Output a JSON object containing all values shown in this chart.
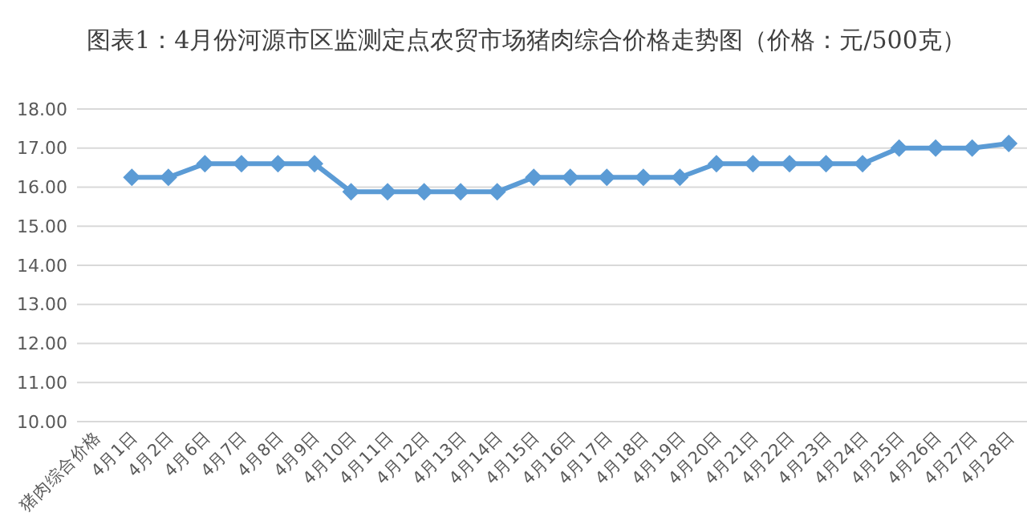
{
  "chart_data": {
    "type": "line",
    "title": "图表1：4月份河源市区监测定点农贸市场猪肉综合价格走势图（价格：元/500克）",
    "categories": [
      "猪肉综合价格",
      "4月1日",
      "4月2日",
      "4月6日",
      "4月7日",
      "4月8日",
      "4月9日",
      "4月10日",
      "4月11日",
      "4月12日",
      "4月13日",
      "4月14日",
      "4月15日",
      "4月16日",
      "4月17日",
      "4月18日",
      "4月19日",
      "4月20日",
      "4月21日",
      "4月22日",
      "4月23日",
      "4月24日",
      "4月25日",
      "4月26日",
      "4月27日",
      "4月28日"
    ],
    "series": [
      {
        "color": "#5b9bd5",
        "values": [
          null,
          16.25,
          16.25,
          16.6,
          16.6,
          16.6,
          16.6,
          15.88,
          15.88,
          15.88,
          15.88,
          15.88,
          16.25,
          16.25,
          16.25,
          16.25,
          16.25,
          16.6,
          16.6,
          16.6,
          16.6,
          16.6,
          17.0,
          17.0,
          17.0,
          17.12
        ]
      }
    ],
    "ylim": [
      10,
      18
    ],
    "yticks": [
      {
        "value": 10,
        "label": "10.00"
      },
      {
        "value": 11,
        "label": "11.00"
      },
      {
        "value": 12,
        "label": "12.00"
      },
      {
        "value": 13,
        "label": "13.00"
      },
      {
        "value": 14,
        "label": "14.00"
      },
      {
        "value": 15,
        "label": "15.00"
      },
      {
        "value": 16,
        "label": "16.00"
      },
      {
        "value": 17,
        "label": "17.00"
      },
      {
        "value": 18,
        "label": "18.00"
      }
    ],
    "grid": "y",
    "marker": "diamond",
    "line_style": "solid"
  }
}
